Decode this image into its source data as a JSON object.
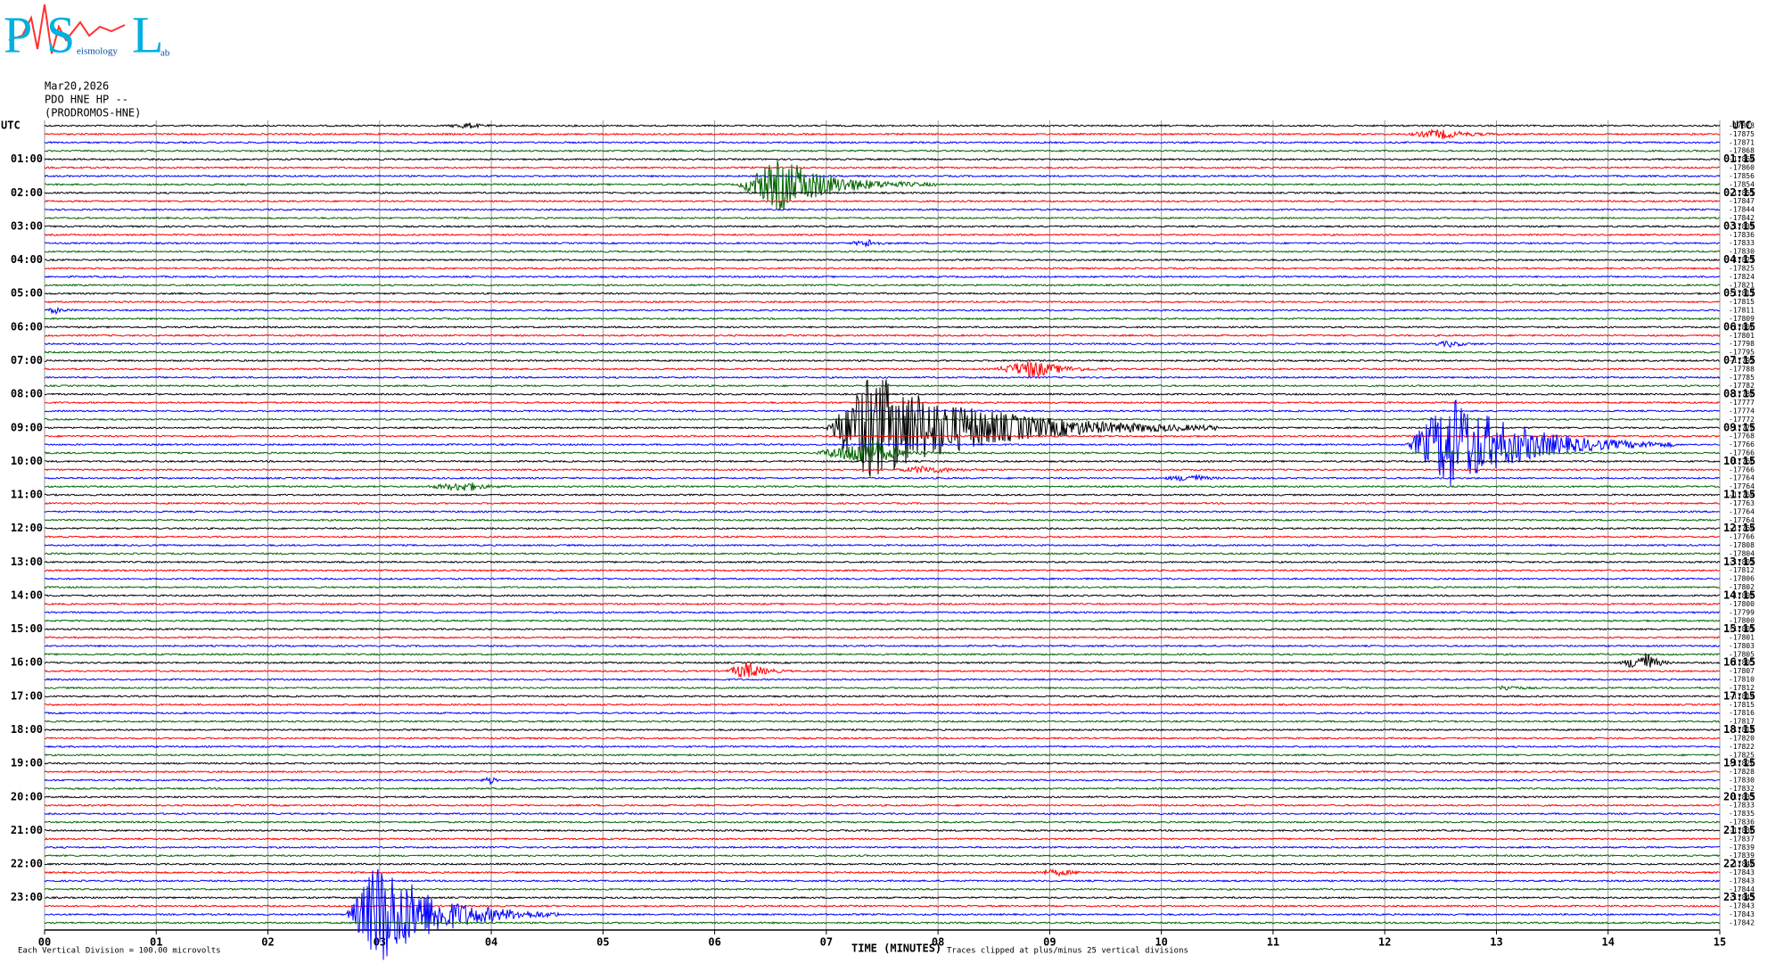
{
  "logo": {
    "letters": [
      "P",
      "S",
      "L"
    ],
    "words": [
      "eismology",
      "ab"
    ]
  },
  "chart_data": {
    "type": "helicorder",
    "title": [
      "Mar20,2026",
      "PDO HNE HP --",
      "(PRODROMOS-HNE)"
    ],
    "x_label": "TIME (MINUTES)",
    "note_left": "Each Vertical Division =  100.00 microvolts",
    "note_right": "Traces clipped at plus/minus 25 vertical divisions",
    "xlim": [
      0,
      15
    ],
    "xticks": [
      {
        "value": 0,
        "label": "00"
      },
      {
        "value": 1,
        "label": "01"
      },
      {
        "value": 2,
        "label": "02"
      },
      {
        "value": 3,
        "label": "03"
      },
      {
        "value": 4,
        "label": "04"
      },
      {
        "value": 5,
        "label": "05"
      },
      {
        "value": 6,
        "label": "06"
      },
      {
        "value": 7,
        "label": "07"
      },
      {
        "value": 8,
        "label": "08"
      },
      {
        "value": 9,
        "label": "09"
      },
      {
        "value": 10,
        "label": "10"
      },
      {
        "value": 11,
        "label": "11"
      },
      {
        "value": 12,
        "label": "12"
      },
      {
        "value": 13,
        "label": "13"
      },
      {
        "value": 14,
        "label": "14"
      },
      {
        "value": 15,
        "label": "15"
      }
    ],
    "trace_colors": [
      "#000000",
      "#ff0000",
      "#0000ff",
      "#006400"
    ],
    "left_labels": [
      "UTC",
      "01:00",
      "02:00",
      "03:00",
      "04:00",
      "05:00",
      "06:00",
      "07:00",
      "08:00",
      "09:00",
      "10:00",
      "11:00",
      "12:00",
      "13:00",
      "14:00",
      "15:00",
      "16:00",
      "17:00",
      "18:00",
      "19:00",
      "20:00",
      "21:00",
      "22:00",
      "23:00"
    ],
    "right_labels": [
      "UTC",
      "01:15",
      "02:15",
      "03:15",
      "04:15",
      "05:15",
      "06:15",
      "07:15",
      "08:15",
      "09:15",
      "10:15",
      "11:15",
      "12:15",
      "13:15",
      "14:15",
      "15:15",
      "16:15",
      "17:15",
      "18:15",
      "19:15",
      "20:15",
      "21:15",
      "22:15",
      "23:15"
    ],
    "trace_offsets": [
      -17878,
      -17875,
      -17871,
      -17868,
      -17864,
      -17860,
      -17856,
      -17854,
      -17851,
      -17847,
      -17844,
      -17842,
      -17839,
      -17836,
      -17833,
      -17830,
      -17827,
      -17825,
      -17824,
      -17821,
      -17817,
      -17815,
      -17811,
      -17809,
      -17806,
      -17801,
      -17798,
      -17795,
      -17792,
      -17788,
      -17785,
      -17782,
      -17780,
      -17777,
      -17774,
      -17772,
      -17770,
      -17768,
      -17766,
      -17766,
      -17766,
      -17766,
      -17764,
      -17764,
      -17764,
      -17763,
      -17764,
      -17764,
      -17764,
      -17766,
      -17808,
      -17804,
      -17802,
      -17812,
      -17806,
      -17802,
      -17800,
      -17800,
      -17799,
      -17800,
      -17801,
      -17801,
      -17803,
      -17805,
      -17805,
      -17807,
      -17810,
      -17812,
      -17814,
      -17815,
      -17816,
      -17817,
      -17818,
      -17820,
      -17822,
      -17825,
      -17826,
      -17828,
      -17830,
      -17832,
      -17833,
      -17833,
      -17835,
      -17836,
      -17836,
      -17837,
      -17839,
      -17839,
      -17840,
      -17843,
      -17843,
      -17844,
      -17843,
      -17843,
      -17843,
      -17842
    ]
  }
}
